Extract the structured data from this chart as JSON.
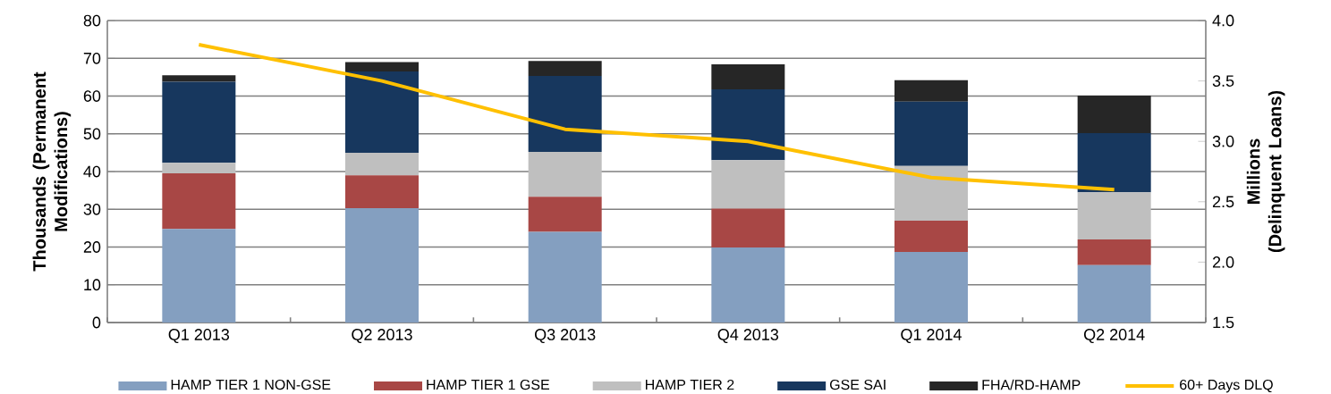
{
  "chart_data": {
    "type": "bar",
    "stacked": true,
    "categories": [
      "Q1 2013",
      "Q2 2013",
      "Q3 2013",
      "Q4 2013",
      "Q1 2014",
      "Q2 2014"
    ],
    "series": [
      {
        "name": "HAMP TIER 1 NON-GSE",
        "color": "#849fc0",
        "values": [
          24.8,
          30.3,
          24.0,
          19.9,
          18.7,
          15.2
        ]
      },
      {
        "name": "HAMP TIER 1 GSE",
        "color": "#a84745",
        "values": [
          14.7,
          8.7,
          9.3,
          10.3,
          8.3,
          6.8
        ]
      },
      {
        "name": "HAMP TIER 2",
        "color": "#bfbfbf",
        "values": [
          2.8,
          6.0,
          11.9,
          12.8,
          14.5,
          12.5
        ]
      },
      {
        "name": "GSE SAI",
        "color": "#17375e",
        "values": [
          21.5,
          21.5,
          20.1,
          18.8,
          17.0,
          15.7
        ]
      },
      {
        "name": "FHA/RD-HAMP",
        "color": "#262626",
        "values": [
          1.7,
          2.5,
          4.0,
          6.6,
          5.7,
          9.9
        ]
      },
      {
        "name": "60+ Days DLQ",
        "type": "line",
        "axis": "y2",
        "color": "#ffc000",
        "values": [
          3.8,
          3.5,
          3.1,
          3.0,
          2.7,
          2.6
        ]
      }
    ],
    "ylabel": "Thousands (Permanent Modifications)",
    "y2label": "Millions (Delinquent Loans)",
    "ylim": [
      0,
      80
    ],
    "yticks": [
      0,
      10,
      20,
      30,
      40,
      50,
      60,
      70,
      80
    ],
    "y2lim": [
      1.5,
      4.0
    ],
    "y2ticks": [
      {
        "value": 1.5,
        "label": "1.5"
      },
      {
        "value": 2.0,
        "label": "2.0"
      },
      {
        "value": 2.5,
        "label": "2.5"
      },
      {
        "value": 3.0,
        "label": "3.0"
      },
      {
        "value": 3.5,
        "label": "3.5"
      },
      {
        "value": 4.0,
        "label": "4.0"
      }
    ],
    "grid": "y",
    "legend": "bottom"
  }
}
